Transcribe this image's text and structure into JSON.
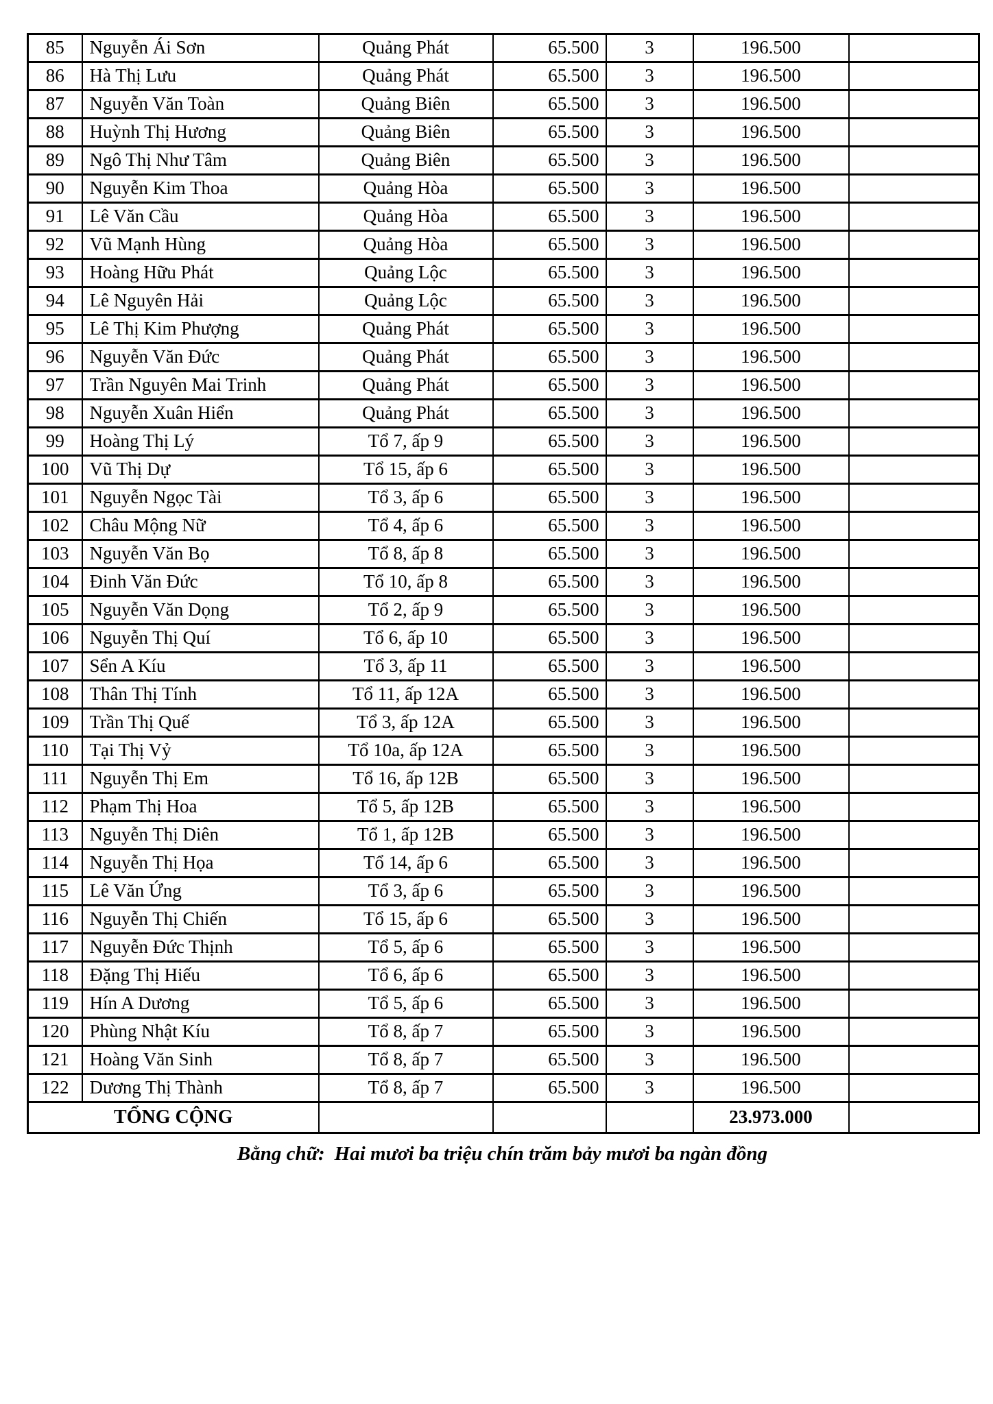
{
  "page": {
    "background": "#ffffff",
    "text_color": "#000000",
    "border_color": "#000000"
  },
  "table": {
    "column_keys": [
      "stt",
      "name",
      "location",
      "unit_price",
      "quantity",
      "amount",
      "note"
    ],
    "rows": [
      [
        "85",
        "Nguyễn Ái Sơn",
        "Quảng Phát",
        "65.500",
        "3",
        "196.500",
        ""
      ],
      [
        "86",
        "Hà Thị Lưu",
        "Quảng Phát",
        "65.500",
        "3",
        "196.500",
        ""
      ],
      [
        "87",
        "Nguyễn Văn Toàn",
        "Quảng Biên",
        "65.500",
        "3",
        "196.500",
        ""
      ],
      [
        "88",
        "Huỳnh Thị Hương",
        "Quảng Biên",
        "65.500",
        "3",
        "196.500",
        ""
      ],
      [
        "89",
        "Ngô Thị Như Tâm",
        "Quảng Biên",
        "65.500",
        "3",
        "196.500",
        ""
      ],
      [
        "90",
        "Nguyễn Kim Thoa",
        "Quảng Hòa",
        "65.500",
        "3",
        "196.500",
        ""
      ],
      [
        "91",
        "Lê Văn Cầu",
        "Quảng Hòa",
        "65.500",
        "3",
        "196.500",
        ""
      ],
      [
        "92",
        "Vũ Mạnh Hùng",
        "Quảng Hòa",
        "65.500",
        "3",
        "196.500",
        ""
      ],
      [
        "93",
        "Hoàng Hữu Phát",
        "Quảng Lộc",
        "65.500",
        "3",
        "196.500",
        ""
      ],
      [
        "94",
        "Lê Nguyên Hải",
        "Quảng Lộc",
        "65.500",
        "3",
        "196.500",
        ""
      ],
      [
        "95",
        "Lê Thị Kim Phượng",
        "Quảng Phát",
        "65.500",
        "3",
        "196.500",
        ""
      ],
      [
        "96",
        "Nguyễn Văn Đức",
        "Quảng Phát",
        "65.500",
        "3",
        "196.500",
        ""
      ],
      [
        "97",
        "Trần Nguyên Mai Trinh",
        "Quảng Phát",
        "65.500",
        "3",
        "196.500",
        ""
      ],
      [
        "98",
        "Nguyễn Xuân  Hiển",
        "Quảng Phát",
        "65.500",
        "3",
        "196.500",
        ""
      ],
      [
        "99",
        "Hoàng Thị Lý",
        "Tổ 7, ấp 9",
        "65.500",
        "3",
        "196.500",
        ""
      ],
      [
        "100",
        "Vũ Thị Dự",
        "Tổ 15, ấp 6",
        "65.500",
        "3",
        "196.500",
        ""
      ],
      [
        "101",
        "Nguyễn Ngọc Tài",
        "Tổ 3, ấp 6",
        "65.500",
        "3",
        "196.500",
        ""
      ],
      [
        "102",
        "Châu Mộng Nữ",
        "Tổ 4, ấp 6",
        "65.500",
        "3",
        "196.500",
        ""
      ],
      [
        "103",
        "Nguyễn Văn Bọ",
        "Tổ 8, ấp 8",
        "65.500",
        "3",
        "196.500",
        ""
      ],
      [
        "104",
        "Đinh Văn Đức",
        "Tổ 10, ấp 8",
        "65.500",
        "3",
        "196.500",
        ""
      ],
      [
        "105",
        "Nguyễn Văn Dọng",
        "Tổ 2, ấp 9",
        "65.500",
        "3",
        "196.500",
        ""
      ],
      [
        "106",
        "Nguyễn Thị Quí",
        "Tổ 6, ấp 10",
        "65.500",
        "3",
        "196.500",
        ""
      ],
      [
        "107",
        "Sển A Kíu",
        "Tổ 3, ấp 11",
        "65.500",
        "3",
        "196.500",
        ""
      ],
      [
        "108",
        "Thân Thị Tính",
        "Tổ 11, ấp 12A",
        "65.500",
        "3",
        "196.500",
        ""
      ],
      [
        "109",
        "Trần Thị Quế",
        "Tổ 3, ấp 12A",
        "65.500",
        "3",
        "196.500",
        ""
      ],
      [
        "110",
        "Tại Thị Vỷ",
        "Tổ 10a, ấp 12A",
        "65.500",
        "3",
        "196.500",
        ""
      ],
      [
        "111",
        "Nguyễn Thị Em",
        "Tổ 16, ấp 12B",
        "65.500",
        "3",
        "196.500",
        ""
      ],
      [
        "112",
        "Phạm Thị Hoa",
        "Tổ 5, ấp 12B",
        "65.500",
        "3",
        "196.500",
        ""
      ],
      [
        "113",
        "Nguyễn Thị Diên",
        "Tổ 1, ấp 12B",
        "65.500",
        "3",
        "196.500",
        ""
      ],
      [
        "114",
        "Nguyễn Thị Họa",
        "Tổ 14, ấp 6",
        "65.500",
        "3",
        "196.500",
        ""
      ],
      [
        "115",
        "Lê Văn Ứng",
        "Tổ 3, ấp 6",
        "65.500",
        "3",
        "196.500",
        ""
      ],
      [
        "116",
        "Nguyễn Thị Chiến",
        "Tổ 15, ấp 6",
        "65.500",
        "3",
        "196.500",
        ""
      ],
      [
        "117",
        "Nguyễn Đức Thịnh",
        "Tổ 5, ấp 6",
        "65.500",
        "3",
        "196.500",
        ""
      ],
      [
        "118",
        "Đặng Thị Hiếu",
        "Tổ 6, ấp 6",
        "65.500",
        "3",
        "196.500",
        ""
      ],
      [
        "119",
        "Hín A Dương",
        "Tổ 5, ấp 6",
        "65.500",
        "3",
        "196.500",
        ""
      ],
      [
        "120",
        "Phùng Nhật Kíu",
        "Tổ 8, ấp 7",
        "65.500",
        "3",
        "196.500",
        ""
      ],
      [
        "121",
        "Hoàng Văn Sinh",
        "Tổ 8, ấp 7",
        "65.500",
        "3",
        "196.500",
        ""
      ],
      [
        "122",
        "Dương Thị Thành",
        "Tổ 8, ấp 7",
        "65.500",
        "3",
        "196.500",
        ""
      ]
    ],
    "total_row": {
      "label": "TỔNG CỘNG",
      "location": "",
      "unit_price": "",
      "quantity": "",
      "amount": "23.973.000",
      "note": ""
    }
  },
  "footer": {
    "amount_in_words_label": "Bằng chữ:",
    "amount_in_words": "Hai mươi ba triệu chín trăm bảy mươi ba ngàn đồng"
  }
}
